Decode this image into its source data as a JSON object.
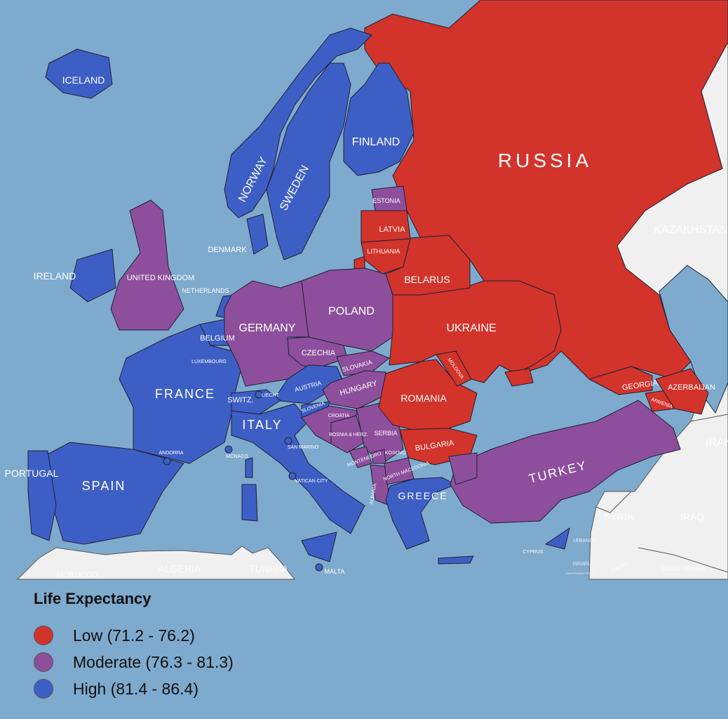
{
  "legend": {
    "title": "Life Expectancy",
    "items": [
      {
        "label": "Low (71.2 - 76.2)",
        "color": "#d2332b"
      },
      {
        "label": "Moderate (76.3 - 81.3)",
        "color": "#8d4f9c"
      },
      {
        "label": "High (81.4 - 86.4)",
        "color": "#3d5fc5"
      }
    ]
  },
  "colors": {
    "sea": "#7eaacd",
    "other_land": "#f0f0f0"
  },
  "countries": {
    "russia": {
      "label": "RUSSIA",
      "level": 0
    },
    "finland": {
      "label": "FINLAND",
      "level": 2
    },
    "norway": {
      "label": "NORWAY",
      "level": 2
    },
    "sweden": {
      "label": "SWEDEN",
      "level": 2
    },
    "iceland": {
      "label": "ICELAND",
      "level": 2
    },
    "denmark": {
      "label": "DENMARK",
      "level": 2
    },
    "ireland": {
      "label": "IRELAND",
      "level": 2
    },
    "uk": {
      "label": "UNITED KINGDOM",
      "level": 1
    },
    "netherlands": {
      "label": "NETHERLANDS",
      "level": 2
    },
    "belgium": {
      "label": "BELGIUM",
      "level": 2
    },
    "luxembourg": {
      "label": "LUXEMBOURG",
      "level": 2
    },
    "france": {
      "label": "FRANCE",
      "level": 2
    },
    "germany": {
      "label": "GERMANY",
      "level": 1
    },
    "poland": {
      "label": "POLAND",
      "level": 1
    },
    "czechia": {
      "label": "CZECHIA",
      "level": 1
    },
    "slovakia": {
      "label": "SLOVAKIA",
      "level": 1
    },
    "hungary": {
      "label": "HUNGARY",
      "level": 1
    },
    "austria": {
      "label": "AUSTRIA",
      "level": 2
    },
    "switzerland": {
      "label": "SWITZ.",
      "level": 2
    },
    "liechtenstein": {
      "label": "LIECHT.",
      "level": 2
    },
    "italy": {
      "label": "ITALY",
      "level": 2
    },
    "slovenia": {
      "label": "SLOVENIA",
      "level": 2
    },
    "croatia": {
      "label": "CROATIA",
      "level": 1
    },
    "bosnia": {
      "label": "BOSNIA & HERZ.",
      "level": 1
    },
    "serbia": {
      "label": "SERBIA",
      "level": 1
    },
    "montenegro": {
      "label": "MONTENEGRO",
      "level": 1
    },
    "kosovo": {
      "label": "KOSOVO",
      "level": 1
    },
    "albania": {
      "label": "ALBANIA",
      "level": 1
    },
    "north_macedonia": {
      "label": "NORTH MACEDONIA",
      "level": 1
    },
    "greece": {
      "label": "GREECE",
      "level": 2
    },
    "bulgaria": {
      "label": "BULGARIA",
      "level": 0
    },
    "romania": {
      "label": "ROMANIA",
      "level": 0
    },
    "moldova": {
      "label": "MOLDOVA",
      "level": 0
    },
    "ukraine": {
      "label": "UKRAINE",
      "level": 0
    },
    "belarus": {
      "label": "BELARUS",
      "level": 0
    },
    "lithuania": {
      "label": "LITHUANIA",
      "level": 0
    },
    "latvia": {
      "label": "LATVIA",
      "level": 0
    },
    "estonia": {
      "label": "ESTONIA",
      "level": 1
    },
    "georgia": {
      "label": "GEORGIA",
      "level": 0
    },
    "armenia": {
      "label": "ARMENIA",
      "level": 0
    },
    "azerbaijan": {
      "label": "AZERBAIJAN",
      "level": 0
    },
    "turkey": {
      "label": "TURKEY",
      "level": 1
    },
    "cyprus": {
      "label": "CYPRUS",
      "level": 2
    },
    "spain": {
      "label": "SPAIN",
      "level": 2
    },
    "portugal": {
      "label": "PORTUGAL",
      "level": 2
    },
    "andorra": {
      "label": "ANDORRA",
      "level": 2
    },
    "monaco": {
      "label": "MONACO",
      "level": 2
    },
    "san_marino": {
      "label": "SAN MARINO",
      "level": 2
    },
    "vatican": {
      "label": "VATICAN CITY",
      "level": 2
    },
    "malta": {
      "label": "MALTA",
      "level": 2
    }
  },
  "other_regions": {
    "kazakhstan": "KAZAKHSTAN",
    "iran": "IRAN",
    "iraq": "IRAQ",
    "syria": "SYRIA",
    "lebanon": "LEBANON",
    "israel": "ISRAEL",
    "palestinian": "PALESTINIAN TERRIT.",
    "jordan": "JORDAN",
    "saudi_arabia": "SAUDI ARABIA",
    "morocco": "MOROCCO",
    "algeria": "ALGERIA",
    "tunisia": "TUNISIA"
  }
}
